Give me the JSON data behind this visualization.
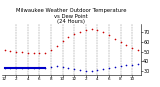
{
  "title": "Milwaukee Weather Outdoor Temperature\nvs Dew Point\n(24 Hours)",
  "title_fontsize": 3.8,
  "bg_color": "#ffffff",
  "plot_bg_color": "#ffffff",
  "grid_color": "#888888",
  "hours": [
    0,
    1,
    2,
    3,
    4,
    5,
    6,
    7,
    8,
    9,
    10,
    11,
    12,
    13,
    14,
    15,
    16,
    17,
    18,
    19,
    20,
    21,
    22,
    23
  ],
  "temp": [
    52,
    51,
    50,
    50,
    49,
    49,
    48,
    48,
    52,
    56,
    61,
    65,
    68,
    70,
    72,
    73,
    72,
    70,
    67,
    63,
    60,
    57,
    54,
    52
  ],
  "dewpoint": [
    33,
    33,
    33,
    33,
    33,
    33,
    33,
    33,
    34,
    35,
    34,
    33,
    32,
    31,
    30,
    30,
    31,
    32,
    33,
    34,
    35,
    36,
    36,
    37
  ],
  "temp_color": "#cc0000",
  "dewpoint_color": "#0000bb",
  "flat_line_color": "#0000cc",
  "flat_line_x_start": 0,
  "flat_line_x_end": 7,
  "flat_line_y": 33,
  "ylim": [
    26,
    78
  ],
  "yticks": [
    30,
    40,
    50,
    60,
    70
  ],
  "ytick_labels": [
    "30",
    "40",
    "50",
    "60",
    "70"
  ],
  "ylabel_fontsize": 3.5,
  "xlabel_fontsize": 3.0,
  "xtick_hours": [
    0,
    2,
    4,
    6,
    8,
    10,
    12,
    14,
    16,
    18,
    20,
    22
  ],
  "xtick_labels": [
    "12",
    "2",
    "4",
    "6",
    "8",
    "10",
    "12",
    "2",
    "4",
    "6",
    "8",
    "10"
  ],
  "vgrid_hours": [
    2,
    4,
    6,
    8,
    10,
    12,
    14,
    16,
    18,
    20,
    22
  ],
  "marker_size": 1.2,
  "flat_linewidth": 1.5
}
